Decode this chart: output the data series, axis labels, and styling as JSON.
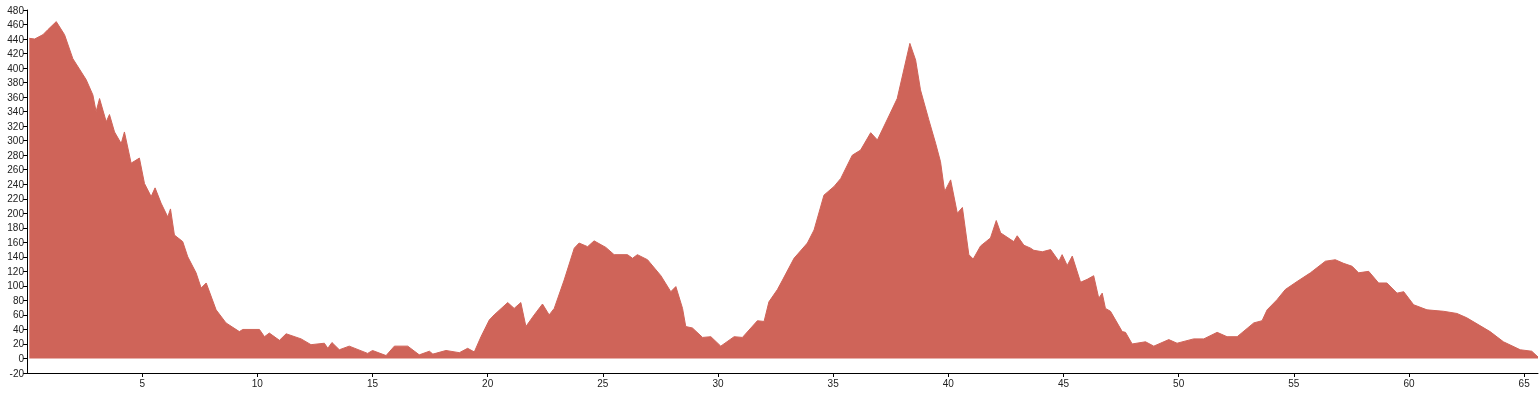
{
  "chart_data": {
    "type": "area",
    "color": "#cf6459",
    "grid": false,
    "marker": "none",
    "x": [
      0.1,
      0.33,
      0.69,
      0.91,
      1.27,
      1.63,
      1.99,
      2.57,
      2.86,
      3.0,
      3.15,
      3.44,
      3.58,
      3.8,
      4.09,
      4.23,
      4.52,
      4.88,
      5.1,
      5.39,
      5.56,
      5.82,
      6.11,
      6.23,
      6.4,
      6.76,
      6.98,
      7.34,
      7.56,
      7.78,
      8.21,
      8.64,
      9.22,
      9.37,
      10.09,
      10.31,
      10.52,
      10.96,
      11.25,
      11.9,
      12.33,
      12.91,
      13.06,
      13.24,
      13.56,
      13.99,
      14.79,
      15.0,
      15.59,
      15.95,
      16.53,
      17.03,
      17.47,
      17.62,
      18.19,
      18.77,
      19.13,
      19.42,
      19.71,
      20.07,
      20.28,
      20.87,
      21.15,
      21.44,
      21.66,
      22.02,
      22.38,
      22.67,
      22.89,
      23.32,
      23.76,
      23.97,
      24.34,
      24.62,
      25.13,
      25.49,
      26.07,
      26.29,
      26.5,
      26.94,
      27.52,
      27.95,
      28.17,
      28.46,
      28.6,
      28.89,
      29.33,
      29.69,
      30.12,
      30.7,
      31.06,
      31.71,
      32.0,
      32.21,
      32.58,
      32.8,
      33.3,
      33.88,
      34.17,
      34.6,
      35.04,
      35.33,
      35.83,
      36.19,
      36.63,
      36.92,
      37.42,
      37.78,
      38.33,
      38.58,
      38.79,
      39.15,
      39.45,
      39.66,
      39.84,
      40.1,
      40.39,
      40.61,
      40.89,
      41.08,
      41.4,
      41.83,
      42.08,
      42.27,
      42.84,
      42.99,
      43.28,
      43.57,
      43.71,
      44.08,
      44.44,
      44.8,
      44.94,
      45.16,
      45.38,
      45.74,
      46.03,
      46.31,
      46.53,
      46.68,
      46.82,
      47.04,
      47.55,
      47.69,
      47.98,
      48.56,
      48.92,
      49.57,
      49.93,
      50.65,
      51.09,
      51.67,
      52.1,
      52.54,
      53.26,
      53.62,
      53.84,
      54.27,
      54.63,
      55.14,
      55.72,
      56.37,
      56.8,
      57.16,
      57.53,
      57.81,
      58.25,
      58.68,
      59.04,
      59.48,
      59.77,
      60.2,
      60.78,
      61.5,
      62.08,
      62.51,
      63.52,
      64.1,
      64.83,
      65.33,
      65.6
    ],
    "values": [
      441,
      440,
      446,
      453,
      464,
      446,
      413,
      384,
      363,
      340,
      358,
      326,
      336,
      312,
      296,
      312,
      269,
      276,
      241,
      223,
      235,
      214,
      195,
      206,
      170,
      161,
      140,
      118,
      97,
      104,
      67,
      49,
      37,
      40,
      40,
      30,
      35,
      25,
      34,
      27,
      19,
      21,
      14,
      22,
      12,
      17,
      7,
      11,
      4,
      17,
      17,
      5,
      10,
      6,
      11,
      8,
      14,
      9,
      30,
      53,
      60,
      77,
      69,
      77,
      44,
      60,
      75,
      60,
      69,
      108,
      152,
      159,
      154,
      162,
      153,
      143,
      143,
      138,
      143,
      136,
      114,
      92,
      99,
      69,
      44,
      42,
      29,
      30,
      17,
      30,
      29,
      52,
      51,
      78,
      95,
      108,
      138,
      159,
      177,
      225,
      237,
      248,
      280,
      287,
      311,
      301,
      334,
      358,
      434,
      411,
      370,
      329,
      296,
      271,
      230,
      246,
      200,
      208,
      143,
      137,
      155,
      166,
      190,
      173,
      161,
      169,
      156,
      152,
      149,
      147,
      150,
      134,
      143,
      128,
      141,
      105,
      109,
      114,
      83,
      90,
      69,
      65,
      37,
      36,
      20,
      23,
      17,
      26,
      21,
      27,
      27,
      36,
      30,
      30,
      49,
      52,
      67,
      81,
      95,
      106,
      118,
      134,
      136,
      131,
      127,
      118,
      120,
      104,
      104,
      90,
      92,
      74,
      67,
      65,
      62,
      56,
      37,
      23,
      12,
      10,
      2
    ],
    "xlim": [
      0,
      65.6
    ],
    "xticks": [
      5,
      10,
      15,
      20,
      25,
      30,
      35,
      40,
      45,
      50,
      55,
      60,
      65
    ],
    "ylim": [
      -20,
      480
    ],
    "yticks": [
      -20,
      0,
      20,
      40,
      60,
      80,
      100,
      120,
      140,
      160,
      180,
      200,
      220,
      240,
      260,
      280,
      300,
      320,
      340,
      360,
      380,
      400,
      420,
      440,
      460,
      480
    ]
  }
}
